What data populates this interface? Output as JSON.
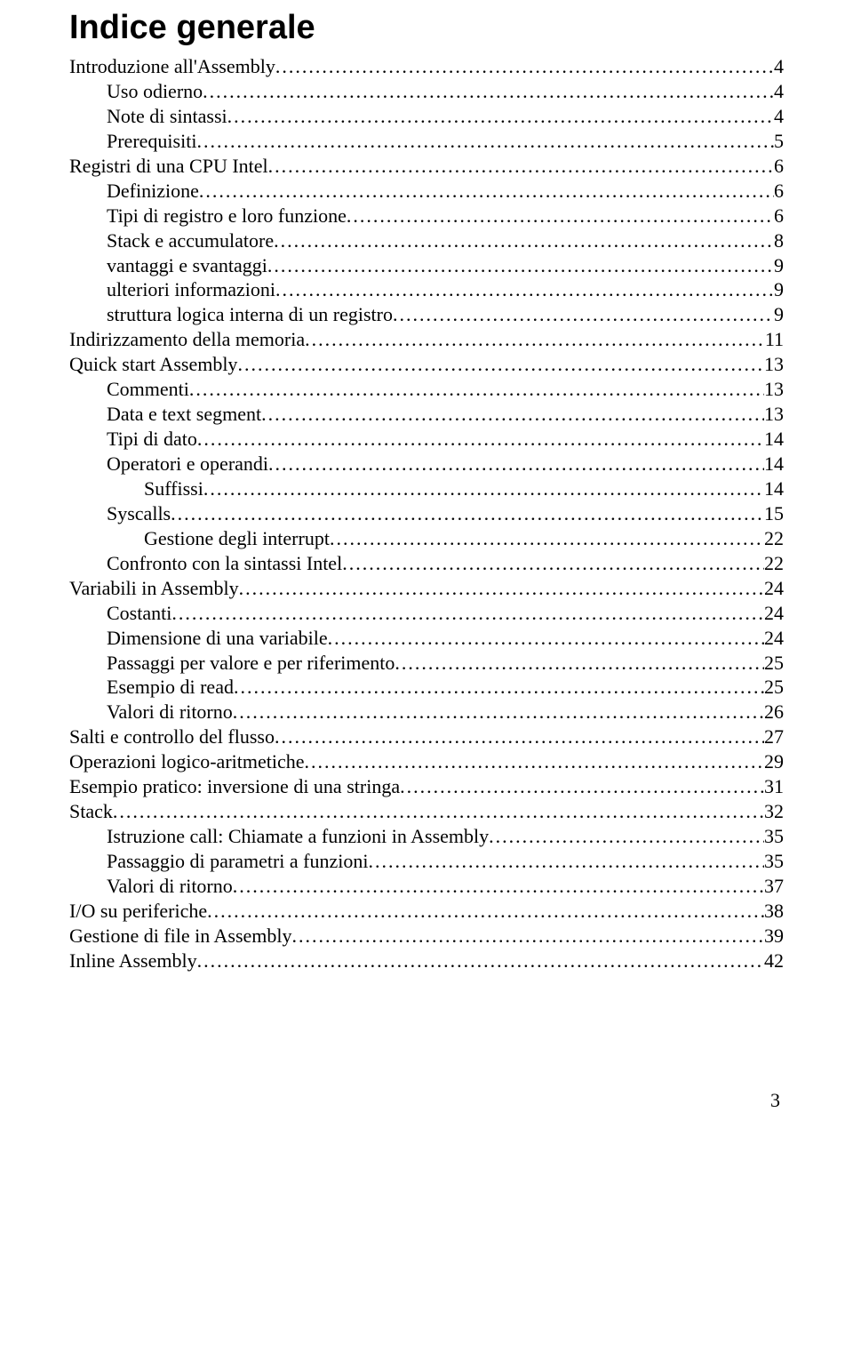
{
  "title": "Indice generale",
  "page_number": "3",
  "toc": [
    {
      "level": 0,
      "text": "Introduzione all'Assembly",
      "page": "4"
    },
    {
      "level": 1,
      "text": "Uso odierno",
      "page": "4"
    },
    {
      "level": 1,
      "text": "Note di sintassi",
      "page": "4"
    },
    {
      "level": 1,
      "text": "Prerequisiti",
      "page": "5"
    },
    {
      "level": 0,
      "text": "Registri di una CPU Intel",
      "page": "6"
    },
    {
      "level": 1,
      "text": "Definizione",
      "page": "6"
    },
    {
      "level": 1,
      "text": "Tipi di registro e loro funzione",
      "page": "6"
    },
    {
      "level": 1,
      "text": "Stack e accumulatore",
      "page": "8"
    },
    {
      "level": 1,
      "text": "vantaggi e svantaggi",
      "page": "9"
    },
    {
      "level": 1,
      "text": "ulteriori informazioni",
      "page": "9"
    },
    {
      "level": 1,
      "text": "struttura logica interna di un registro",
      "page": "9"
    },
    {
      "level": 0,
      "text": "Indirizzamento della memoria",
      "page": "11"
    },
    {
      "level": 0,
      "text": "Quick start Assembly",
      "page": "13"
    },
    {
      "level": 1,
      "text": "Commenti",
      "page": "13"
    },
    {
      "level": 1,
      "text": "Data e text segment",
      "page": "13"
    },
    {
      "level": 1,
      "text": "Tipi di dato",
      "page": "14"
    },
    {
      "level": 1,
      "text": "Operatori e operandi",
      "page": "14"
    },
    {
      "level": 2,
      "text": "Suffissi",
      "page": "14"
    },
    {
      "level": 1,
      "text": "Syscalls",
      "page": "15"
    },
    {
      "level": 2,
      "text": "Gestione degli interrupt",
      "page": "22"
    },
    {
      "level": 1,
      "text": "Confronto con la sintassi Intel",
      "page": "22"
    },
    {
      "level": 0,
      "text": "Variabili in Assembly",
      "page": "24"
    },
    {
      "level": 1,
      "text": "Costanti",
      "page": "24"
    },
    {
      "level": 1,
      "text": "Dimensione di una variabile",
      "page": "24"
    },
    {
      "level": 1,
      "text": "Passaggi per valore e per riferimento",
      "page": "25"
    },
    {
      "level": 1,
      "text": "Esempio di read",
      "page": "25"
    },
    {
      "level": 1,
      "text": "Valori di ritorno",
      "page": "26"
    },
    {
      "level": 0,
      "text": "Salti e controllo del flusso",
      "page": "27"
    },
    {
      "level": 0,
      "text": "Operazioni logico-aritmetiche",
      "page": "29"
    },
    {
      "level": 0,
      "text": "Esempio pratico: inversione di una stringa",
      "page": "31"
    },
    {
      "level": 0,
      "text": "Stack",
      "page": "32"
    },
    {
      "level": 1,
      "text": "Istruzione call: Chiamate a funzioni in Assembly",
      "page": "35"
    },
    {
      "level": 1,
      "text": "Passaggio di parametri a funzioni",
      "page": "35"
    },
    {
      "level": 1,
      "text": "Valori di ritorno",
      "page": "37"
    },
    {
      "level": 0,
      "text": "I/O su periferiche",
      "page": "38"
    },
    {
      "level": 0,
      "text": "Gestione di file in Assembly",
      "page": "39"
    },
    {
      "level": 0,
      "text": "Inline Assembly",
      "page": "42"
    }
  ]
}
